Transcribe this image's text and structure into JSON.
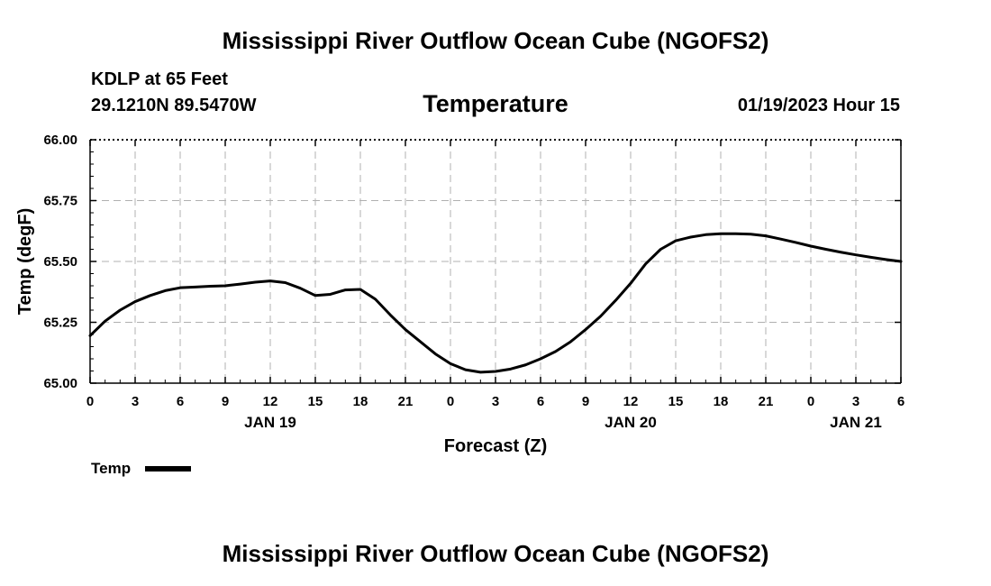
{
  "header": {
    "title": "Mississippi River Outflow Ocean Cube (NGOFS2)",
    "station": "KDLP at 65 Feet",
    "coords": "29.1210N  89.5470W",
    "subtitle": "Temperature",
    "datetime": "01/19/2023 Hour 15"
  },
  "footer": {
    "title": "Mississippi River Outflow Ocean Cube (NGOFS2)"
  },
  "legend": {
    "label": "Temp",
    "color": "#000000"
  },
  "chart_data": {
    "type": "line",
    "title": "Temperature",
    "xlabel": "Forecast (Z)",
    "ylabel": "Temp (degF)",
    "ylim": [
      65.0,
      66.0
    ],
    "xlim": [
      0,
      54
    ],
    "grid": true,
    "yticks": [
      65.0,
      65.25,
      65.5,
      65.75,
      66.0
    ],
    "ytick_labels": [
      "65.00",
      "65.25",
      "65.50",
      "65.75",
      "66.00"
    ],
    "xticks": [
      0,
      3,
      6,
      9,
      12,
      15,
      18,
      21,
      24,
      27,
      30,
      33,
      36,
      39,
      42,
      45,
      48,
      51,
      54
    ],
    "xtick_labels": [
      "0",
      "3",
      "6",
      "9",
      "12",
      "15",
      "18",
      "21",
      "0",
      "3",
      "6",
      "9",
      "12",
      "15",
      "18",
      "21",
      "0",
      "3",
      "6"
    ],
    "date_labels": [
      {
        "x": 12,
        "label": "JAN 19"
      },
      {
        "x": 36,
        "label": "JAN 20"
      },
      {
        "x": 51,
        "label": "JAN 21"
      }
    ],
    "series": [
      {
        "name": "Temp",
        "color": "#000000",
        "x": [
          0,
          1,
          2,
          3,
          4,
          5,
          6,
          7,
          8,
          9,
          10,
          11,
          12,
          13,
          14,
          15,
          16,
          17,
          18,
          19,
          20,
          21,
          22,
          23,
          24,
          25,
          26,
          27,
          28,
          29,
          30,
          31,
          32,
          33,
          34,
          35,
          36,
          37,
          38,
          39,
          40,
          41,
          42,
          43,
          44,
          45,
          46,
          47,
          48,
          49,
          50,
          51,
          52,
          53,
          54
        ],
        "values": [
          65.195,
          65.255,
          65.3,
          65.335,
          65.36,
          65.38,
          65.392,
          65.395,
          65.398,
          65.4,
          65.407,
          65.415,
          65.42,
          65.413,
          65.39,
          65.36,
          65.365,
          65.383,
          65.385,
          65.345,
          65.28,
          65.22,
          65.17,
          65.12,
          65.08,
          65.055,
          65.045,
          65.048,
          65.058,
          65.075,
          65.1,
          65.13,
          65.17,
          65.22,
          65.275,
          65.34,
          65.41,
          65.49,
          65.55,
          65.585,
          65.6,
          65.61,
          65.614,
          65.614,
          65.612,
          65.605,
          65.592,
          65.578,
          65.563,
          65.55,
          65.538,
          65.527,
          65.517,
          65.508,
          65.5
        ]
      }
    ]
  }
}
